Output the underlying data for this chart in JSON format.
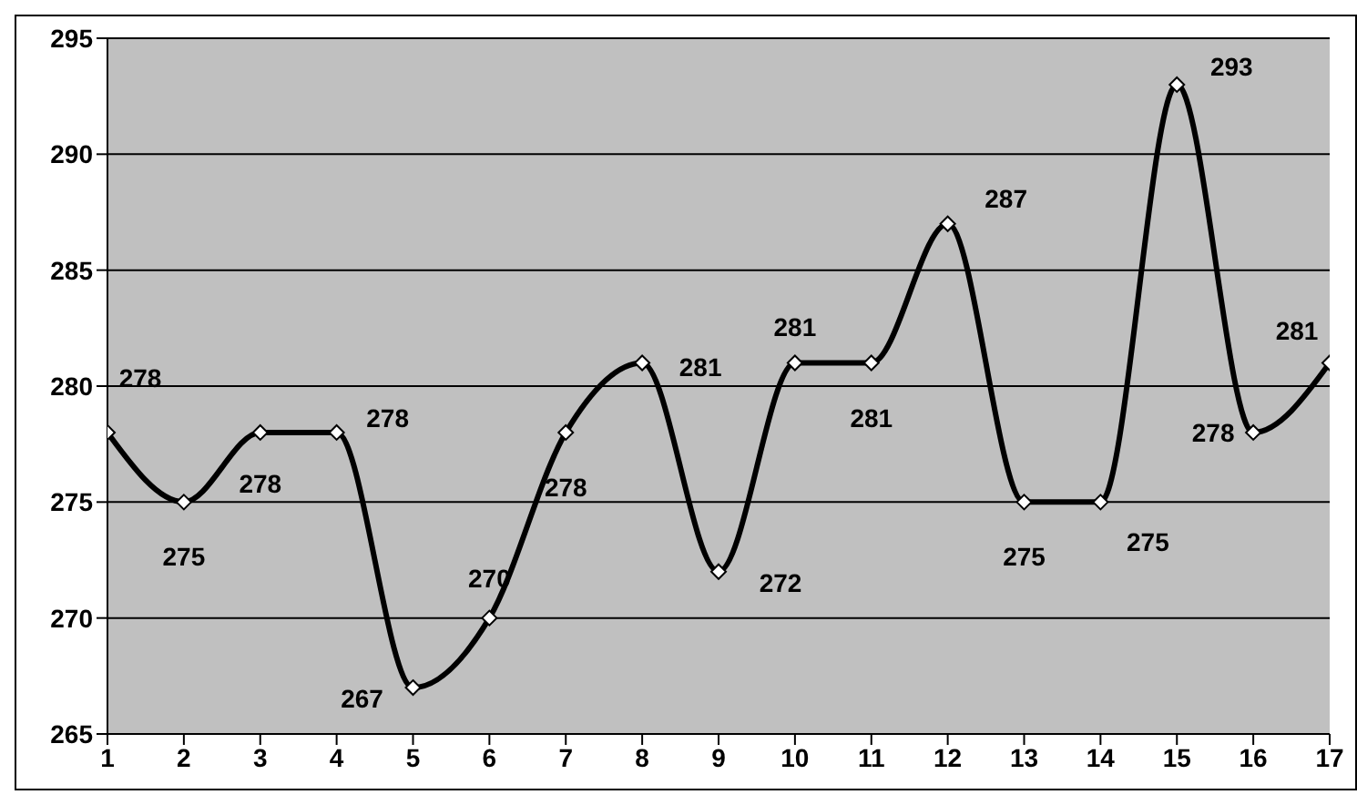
{
  "chart_data": {
    "type": "line",
    "x": [
      1,
      2,
      3,
      4,
      5,
      6,
      7,
      8,
      9,
      10,
      11,
      12,
      13,
      14,
      15,
      16,
      17
    ],
    "values": [
      278,
      275,
      278,
      278,
      267,
      270,
      278,
      281,
      272,
      281,
      281,
      287,
      275,
      275,
      293,
      278,
      281
    ],
    "color": "#000000",
    "xlim": [
      1,
      17
    ],
    "xticks": [
      1,
      2,
      3,
      4,
      5,
      6,
      7,
      8,
      9,
      10,
      11,
      12,
      13,
      14,
      15,
      16,
      17
    ],
    "ylim": [
      265,
      295
    ],
    "yticks": [
      265,
      270,
      275,
      280,
      285,
      290,
      295
    ],
    "grid": "y",
    "marker": "diamond",
    "line_style": "solid",
    "data_labels": true
  }
}
